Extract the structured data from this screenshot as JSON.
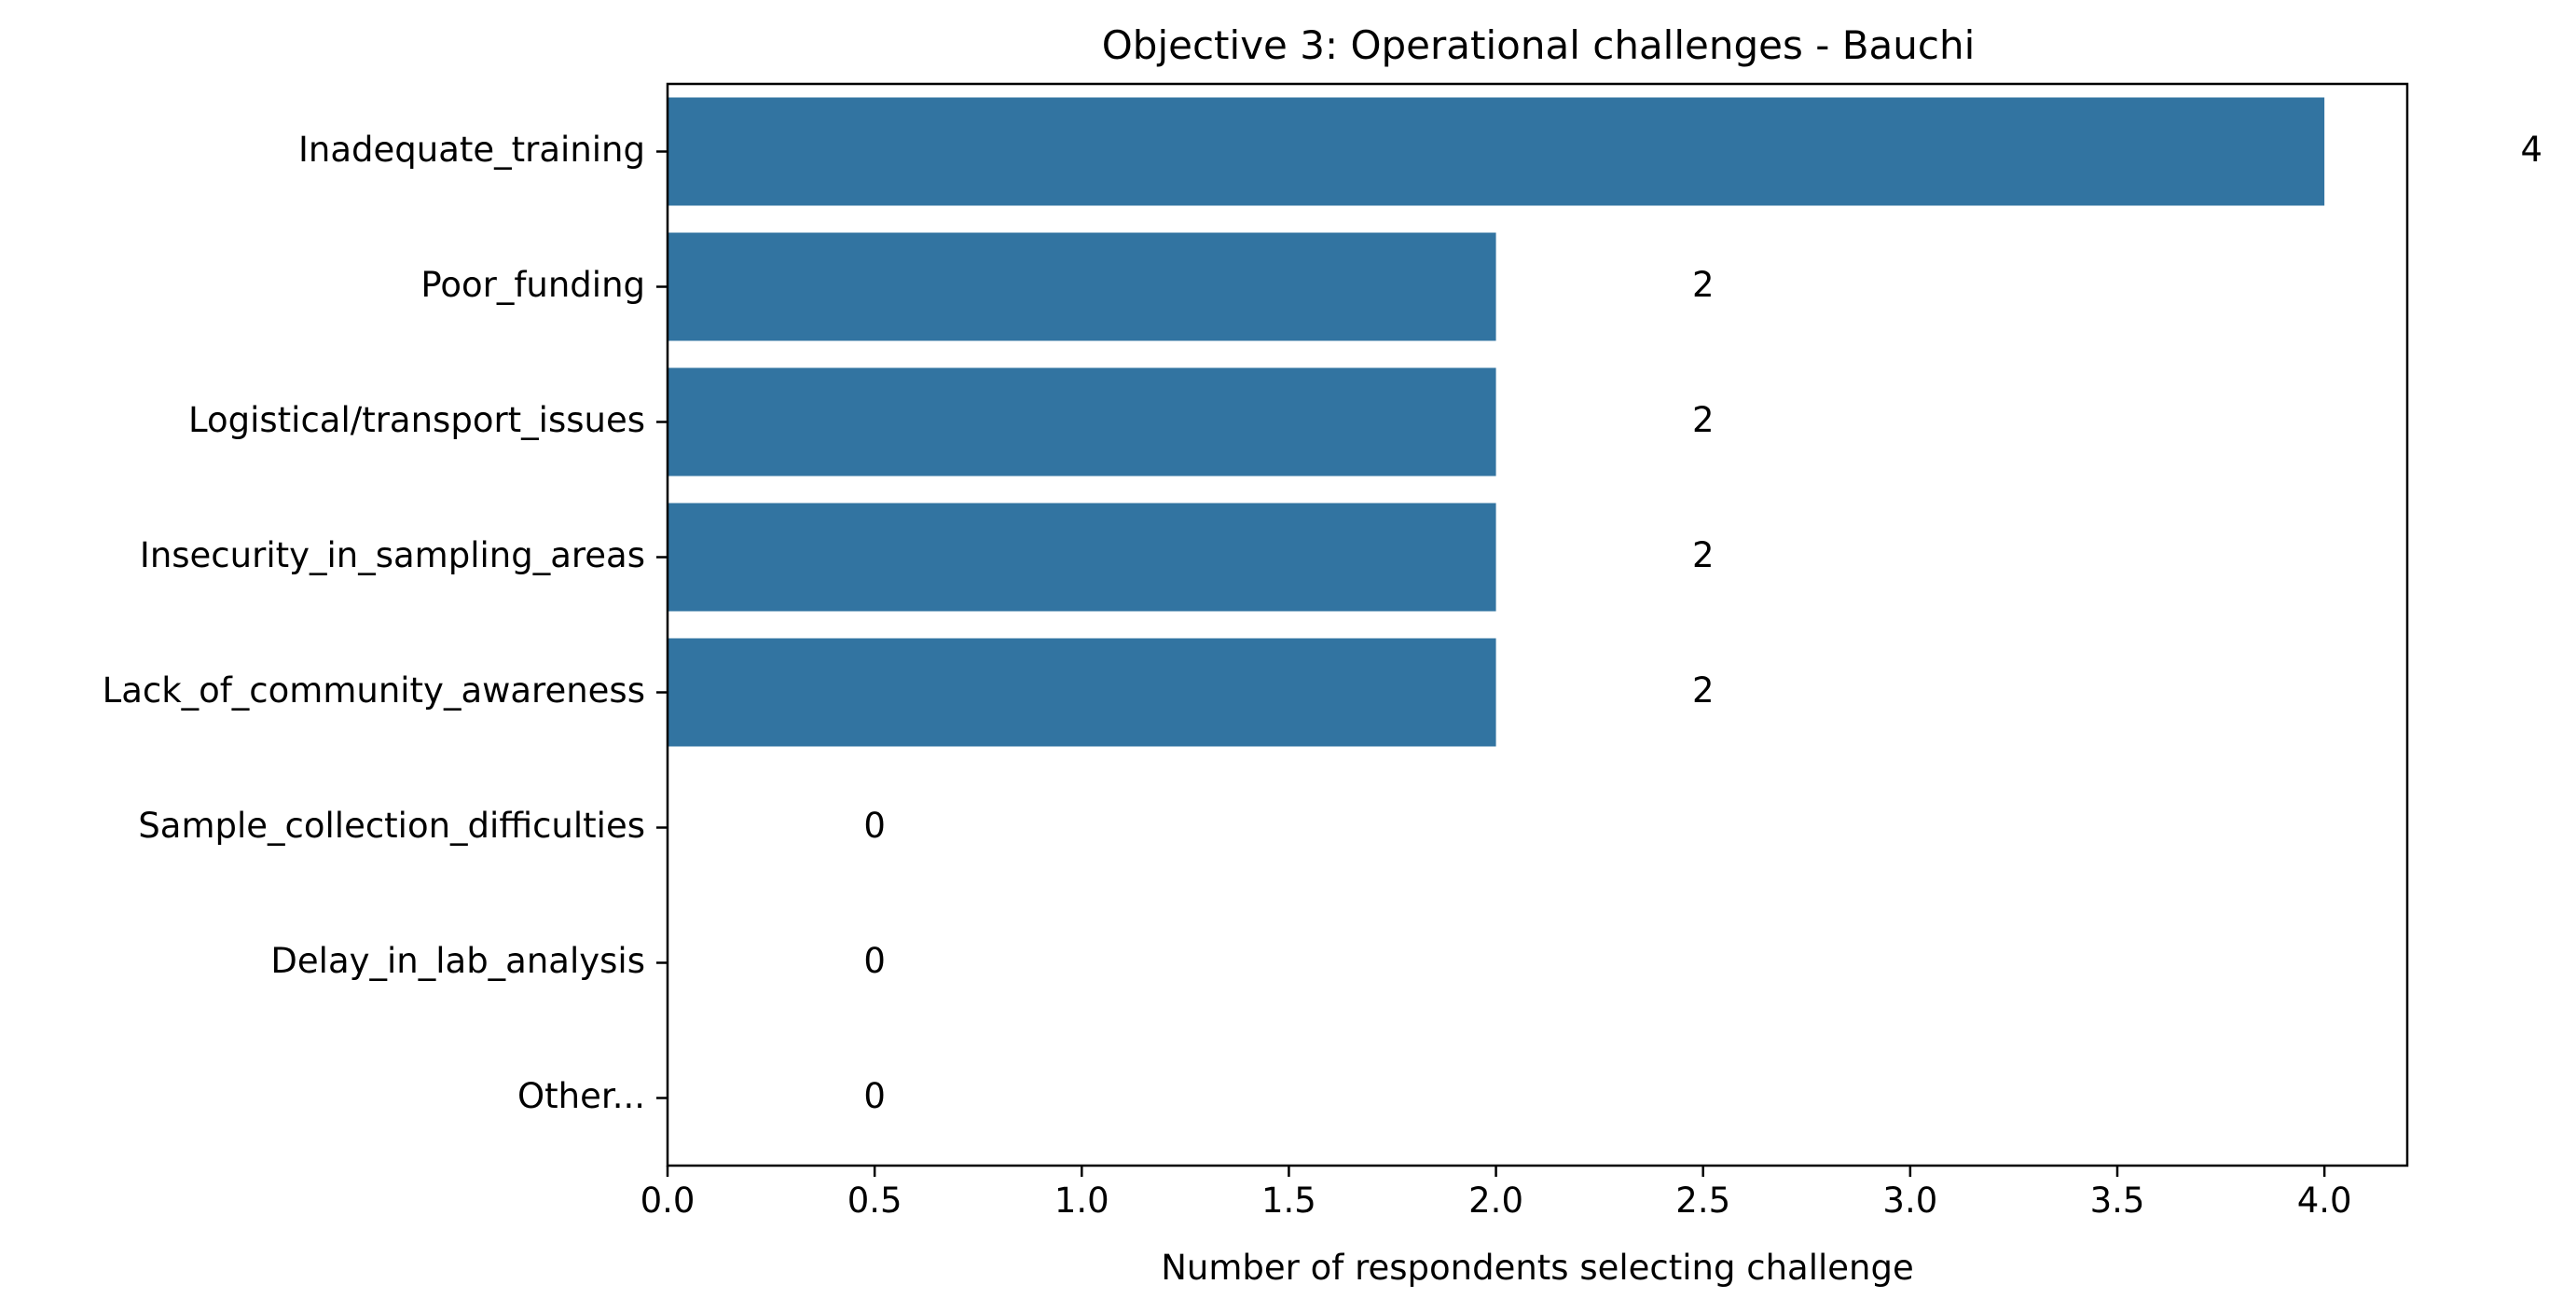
{
  "chart_data": {
    "type": "bar",
    "orientation": "horizontal",
    "title": "Objective 3: Operational challenges - Bauchi",
    "xlabel": "Number of respondents selecting challenge",
    "ylabel": "",
    "categories": [
      "Inadequate_training",
      "Poor_funding",
      "Logistical/transport_issues",
      "Insecurity_in_sampling_areas",
      "Lack_of_community_awareness",
      "Sample_collection_difficulties",
      "Delay_in_lab_analysis",
      "Other..."
    ],
    "values": [
      4,
      2,
      2,
      2,
      2,
      0,
      0,
      0
    ],
    "data_labels": [
      "4",
      "2",
      "2",
      "2",
      "2",
      "0",
      "0",
      "0"
    ],
    "xlim": [
      0,
      4.2
    ],
    "xticks": [
      0.0,
      0.5,
      1.0,
      1.5,
      2.0,
      2.5,
      3.0,
      3.5,
      4.0
    ],
    "xtick_labels": [
      "0.0",
      "0.5",
      "1.0",
      "1.5",
      "2.0",
      "2.5",
      "3.0",
      "3.5",
      "4.0"
    ],
    "data_label_offset": 0.5,
    "bar_color": "#3274a1",
    "grid": false,
    "legend": "none"
  }
}
